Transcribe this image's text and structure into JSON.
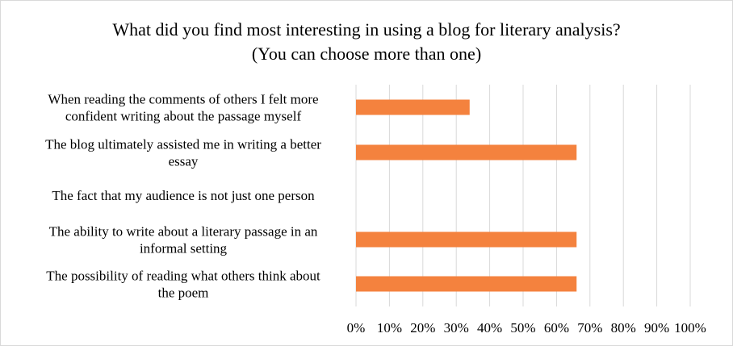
{
  "chart_data": {
    "type": "bar",
    "orientation": "horizontal",
    "title": [
      "What did you find most interesting in using a blog for literary analysis?",
      "(You can choose more than one)"
    ],
    "categories": [
      [
        "When reading the comments of others I felt more",
        "confident writing about the passage myself"
      ],
      [
        "The blog ultimately assisted me in writing a better",
        "essay"
      ],
      [
        "The fact that my audience is not just one person"
      ],
      [
        "The ability to write about a literary passage in an",
        "informal setting"
      ],
      [
        "The possibility of reading what others think about",
        "the poem"
      ]
    ],
    "values": [
      0.34,
      0.66,
      0,
      0.66,
      0.66
    ],
    "xlim": [
      0,
      1
    ],
    "xticks": [
      "0%",
      "10%",
      "20%",
      "30%",
      "40%",
      "50%",
      "60%",
      "70%",
      "80%",
      "90%",
      "100%"
    ],
    "grid": true,
    "bar_color": "#f4823e",
    "grid_color": "#d9d9d9"
  }
}
